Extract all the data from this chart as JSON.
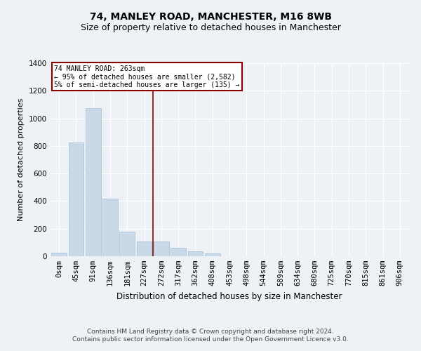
{
  "title1": "74, MANLEY ROAD, MANCHESTER, M16 8WB",
  "title2": "Size of property relative to detached houses in Manchester",
  "xlabel": "Distribution of detached houses by size in Manchester",
  "ylabel": "Number of detached properties",
  "bar_color": "#c9d9e8",
  "bar_edge_color": "#a0bcd4",
  "categories": [
    "0sqm",
    "45sqm",
    "91sqm",
    "136sqm",
    "181sqm",
    "227sqm",
    "272sqm",
    "317sqm",
    "362sqm",
    "408sqm",
    "453sqm",
    "498sqm",
    "544sqm",
    "589sqm",
    "634sqm",
    "680sqm",
    "725sqm",
    "770sqm",
    "815sqm",
    "861sqm",
    "906sqm"
  ],
  "values": [
    25,
    825,
    1075,
    420,
    180,
    108,
    108,
    60,
    35,
    20,
    0,
    0,
    0,
    0,
    0,
    0,
    0,
    0,
    0,
    0,
    0
  ],
  "ylim": [
    0,
    1400
  ],
  "yticks": [
    0,
    200,
    400,
    600,
    800,
    1000,
    1200,
    1400
  ],
  "property_line_x": 5.5,
  "annotation_text_line1": "74 MANLEY ROAD: 263sqm",
  "annotation_text_line2": "← 95% of detached houses are smaller (2,582)",
  "annotation_text_line3": "5% of semi-detached houses are larger (135) →",
  "footer_line1": "Contains HM Land Registry data © Crown copyright and database right 2024.",
  "footer_line2": "Contains public sector information licensed under the Open Government Licence v3.0.",
  "background_color": "#eef2f7",
  "plot_bg_color": "#eef2f7",
  "grid_color": "#ffffff",
  "line_color": "#8b0000",
  "title1_fontsize": 10,
  "title2_fontsize": 9,
  "xlabel_fontsize": 8.5,
  "ylabel_fontsize": 8,
  "tick_fontsize": 7.5,
  "footer_fontsize": 6.5
}
